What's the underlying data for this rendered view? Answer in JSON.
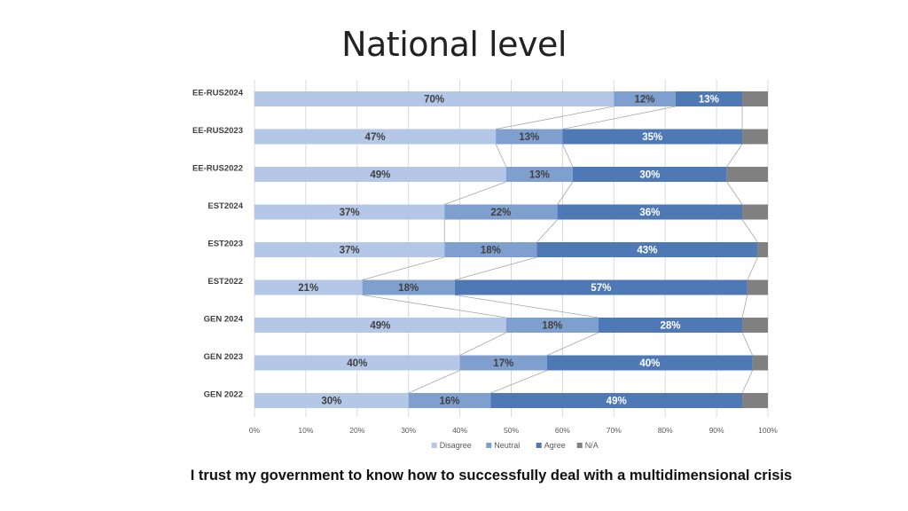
{
  "slide": {
    "title": "National level",
    "caption": "I trust my government to know how to successfully deal with a multidimensional crisis"
  },
  "chart_data": {
    "type": "bar",
    "orientation": "horizontal",
    "stacked": "percent",
    "title": "",
    "xlabel": "",
    "ylabel": "",
    "xlim": [
      0,
      100
    ],
    "x_ticks": [
      "0%",
      "10%",
      "20%",
      "30%",
      "40%",
      "50%",
      "60%",
      "70%",
      "80%",
      "90%",
      "100%"
    ],
    "grid": true,
    "legend_position": "bottom",
    "series_lines": true,
    "categories": [
      "EE-RUS2024",
      "EE-RUS2023",
      "EE-RUS2022",
      "EST2024",
      "EST2023",
      "EST2022",
      "GEN 2024",
      "GEN 2023",
      "GEN 2022"
    ],
    "series": [
      {
        "name": "Disagree",
        "color": "#b4c7e7",
        "label_color": "#404040",
        "values": [
          70,
          47,
          49,
          37,
          37,
          21,
          49,
          40,
          30
        ],
        "labels": [
          "70%",
          "47%",
          "49%",
          "37%",
          "37%",
          "21%",
          "49%",
          "40%",
          "30%"
        ]
      },
      {
        "name": "Neutral",
        "color": "#7f9fcf",
        "label_color": "#404040",
        "values": [
          12,
          13,
          13,
          22,
          18,
          18,
          18,
          17,
          16
        ],
        "labels": [
          "12%",
          "13%",
          "13%",
          "22%",
          "18%",
          "18%",
          "18%",
          "17%",
          "16%"
        ]
      },
      {
        "name": "Agree",
        "color": "#4e79b5",
        "label_color": "#ffffff",
        "values": [
          13,
          35,
          30,
          36,
          43,
          57,
          28,
          40,
          49
        ],
        "labels": [
          "13%",
          "35%",
          "30%",
          "36%",
          "43%",
          "57%",
          "28%",
          "40%",
          "49%"
        ]
      },
      {
        "name": "N/A",
        "color": "#808080",
        "label_color": "#ffffff",
        "values": [
          5,
          5,
          8,
          5,
          2,
          4,
          5,
          3,
          5
        ],
        "labels": [
          "",
          "",
          "",
          "",
          "",
          "",
          "",
          "",
          ""
        ]
      }
    ]
  }
}
